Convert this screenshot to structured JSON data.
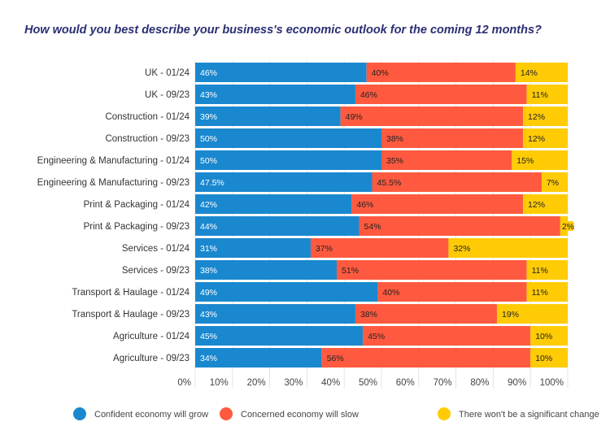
{
  "chart_data": {
    "type": "bar",
    "orientation": "horizontal",
    "stacked": true,
    "title": "How would you best describe your business's economic outlook for the coming 12 months?",
    "categories": [
      "UK - 01/24",
      "UK - 09/23",
      "Construction - 01/24",
      "Construction - 09/23",
      "Engineering & Manufacturing - 01/24",
      "Engineering & Manufacturing - 09/23",
      "Print & Packaging - 01/24",
      "Print & Packaging - 09/23",
      "Services - 01/24",
      "Services - 09/23",
      "Transport & Haulage - 01/24",
      "Transport & Haulage - 09/23",
      "Agriculture - 01/24",
      "Agriculture - 09/23"
    ],
    "series": [
      {
        "name": "Confident economy will grow",
        "color": "#1a88cf",
        "values": [
          46,
          43,
          39,
          50,
          50,
          47.5,
          42,
          44,
          31,
          38,
          49,
          43,
          45,
          34
        ],
        "labels": [
          "46%",
          "43%",
          "39%",
          "50%",
          "50%",
          "47.5%",
          "42%",
          "44%",
          "31%",
          "38%",
          "49%",
          "43%",
          "45%",
          "34%"
        ]
      },
      {
        "name": "Concerned economy will slow",
        "color": "#ff5a3f",
        "values": [
          40,
          46,
          49,
          38,
          35,
          45.5,
          46,
          54,
          37,
          51,
          40,
          38,
          45,
          56
        ],
        "labels": [
          "40%",
          "46%",
          "49%",
          "38%",
          "35%",
          "45.5%",
          "46%",
          "54%",
          "37%",
          "51%",
          "40%",
          "38%",
          "45%",
          "56%"
        ]
      },
      {
        "name": "There won't be a significant change",
        "color": "#ffcb05",
        "values": [
          14,
          11,
          12,
          12,
          15,
          7,
          12,
          2,
          32,
          11,
          11,
          19,
          10,
          10
        ],
        "labels": [
          "14%",
          "11%",
          "12%",
          "12%",
          "15%",
          "7%",
          "12%",
          "2%",
          "32%",
          "11%",
          "11%",
          "19%",
          "10%",
          "10%"
        ]
      }
    ],
    "xlim": [
      0,
      100
    ],
    "xticks": [
      "0%",
      "10%",
      "20%",
      "30%",
      "40%",
      "50%",
      "60%",
      "70%",
      "80%",
      "90%",
      "100%"
    ],
    "grid": true,
    "legend": "bottom"
  }
}
